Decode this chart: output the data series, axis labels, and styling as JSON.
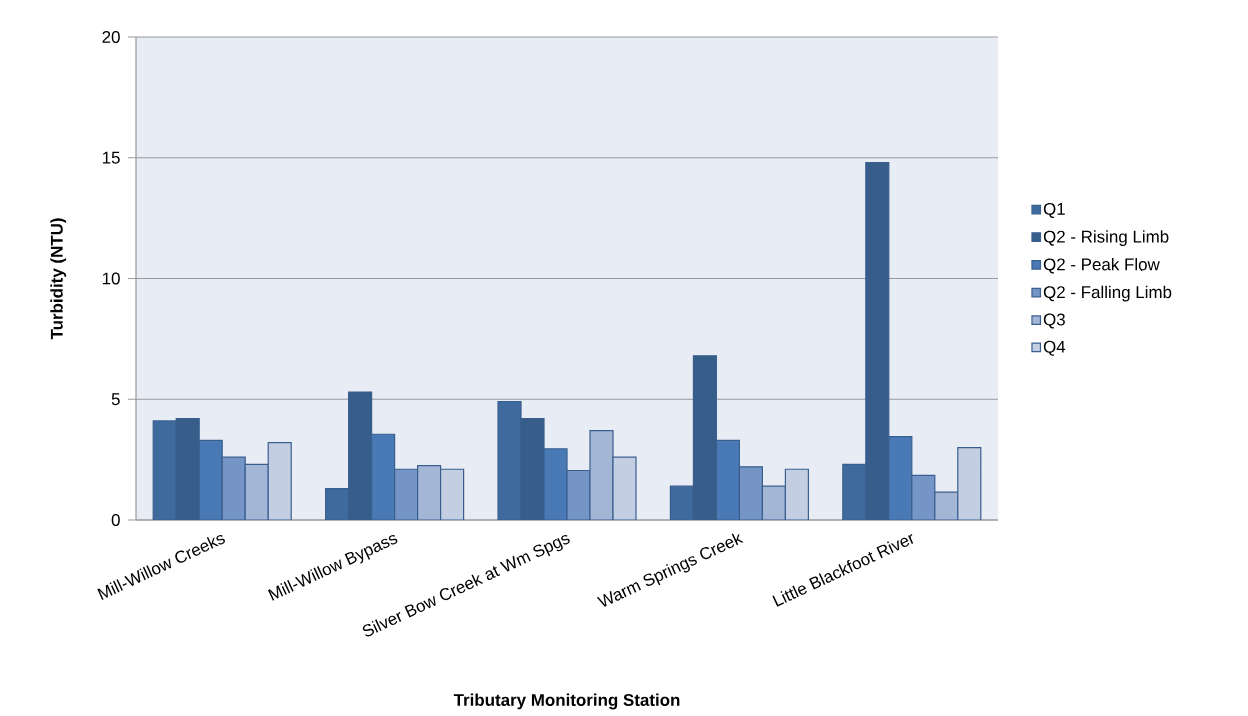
{
  "chart_data": {
    "type": "bar",
    "xlabel": "Tributary Monitoring Station",
    "ylabel": "Turbidity (NTU)",
    "categories": [
      "Mill-Willow Creeks",
      "Mill-Willow Bypass",
      "Silver Bow Creek at Wm Spgs",
      "Warm Springs Creek",
      "Little Blackfoot River"
    ],
    "ylim": [
      0,
      20
    ],
    "yticks": [
      0,
      5,
      10,
      15,
      20
    ],
    "grid": "y",
    "legend": "right",
    "series": [
      {
        "name": "Q1",
        "color": "#3f6a9e",
        "values": [
          4.1,
          1.3,
          4.9,
          1.4,
          2.3
        ]
      },
      {
        "name": "Q2 - Rising Limb",
        "color": "#375d8b",
        "values": [
          4.2,
          5.3,
          4.2,
          6.8,
          14.8
        ]
      },
      {
        "name": "Q2 - Peak Flow",
        "color": "#4a7ab5",
        "values": [
          3.3,
          3.55,
          2.95,
          3.3,
          3.45
        ]
      },
      {
        "name": "Q2 - Falling Limb",
        "color": "#7595c6",
        "values": [
          2.6,
          2.1,
          2.05,
          2.2,
          1.85
        ]
      },
      {
        "name": "Q3",
        "color": "#a3b6d6",
        "values": [
          2.3,
          2.25,
          3.7,
          1.4,
          1.15
        ]
      },
      {
        "name": "Q4",
        "color": "#c3cee2",
        "values": [
          3.2,
          2.1,
          2.6,
          2.1,
          3.0
        ]
      }
    ]
  }
}
